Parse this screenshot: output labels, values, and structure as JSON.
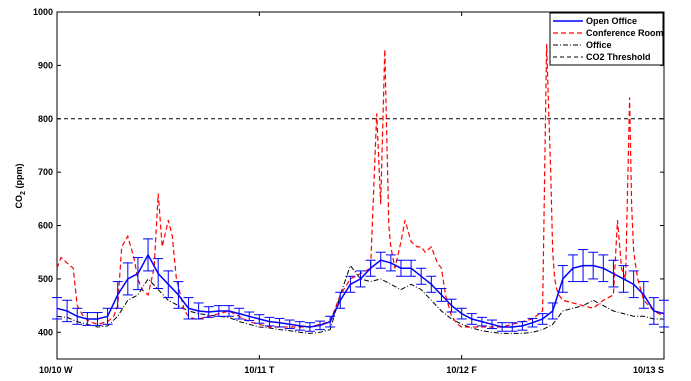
{
  "chart_data": {
    "type": "line",
    "title": "",
    "xlabel": "",
    "ylabel": "CO",
    "ylabel_sub": "2",
    "ylabel_unit": " (ppm)",
    "ylim": [
      350,
      1000
    ],
    "xlim": [
      0,
      3
    ],
    "grid": false,
    "legend_position": "top-right",
    "yticks": [
      400,
      500,
      600,
      700,
      800,
      900,
      1000
    ],
    "xticks": [
      {
        "x": 0,
        "label": "10/10 W"
      },
      {
        "x": 1,
        "label": "10/11 T"
      },
      {
        "x": 2,
        "label": "10/12 F"
      },
      {
        "x": 3,
        "label": "10/13 S"
      }
    ],
    "series": [
      {
        "name": "Open Office",
        "color": "#0000ff",
        "style": "solid",
        "error_bars": true,
        "x": [
          0,
          0.05,
          0.1,
          0.15,
          0.2,
          0.25,
          0.3,
          0.35,
          0.4,
          0.45,
          0.5,
          0.55,
          0.6,
          0.65,
          0.7,
          0.75,
          0.8,
          0.85,
          0.9,
          0.95,
          1.0,
          1.05,
          1.1,
          1.15,
          1.2,
          1.25,
          1.3,
          1.35,
          1.4,
          1.45,
          1.5,
          1.55,
          1.6,
          1.65,
          1.7,
          1.75,
          1.8,
          1.85,
          1.9,
          1.95,
          2.0,
          2.05,
          2.1,
          2.15,
          2.2,
          2.25,
          2.3,
          2.35,
          2.4,
          2.45,
          2.5,
          2.55,
          2.6,
          2.65,
          2.7,
          2.75,
          2.8,
          2.85,
          2.9,
          2.95,
          3.0
        ],
        "values": [
          445,
          440,
          430,
          425,
          425,
          430,
          470,
          500,
          510,
          545,
          510,
          490,
          470,
          445,
          440,
          438,
          440,
          440,
          435,
          430,
          425,
          420,
          418,
          415,
          412,
          410,
          413,
          420,
          460,
          490,
          500,
          520,
          535,
          530,
          520,
          520,
          505,
          490,
          470,
          450,
          435,
          425,
          420,
          415,
          410,
          410,
          412,
          418,
          425,
          440,
          500,
          520,
          525,
          525,
          520,
          510,
          500,
          490,
          470,
          440,
          435
        ],
        "errors": [
          20,
          20,
          15,
          12,
          12,
          15,
          25,
          30,
          30,
          30,
          28,
          25,
          25,
          20,
          15,
          10,
          10,
          10,
          10,
          8,
          8,
          8,
          8,
          8,
          8,
          8,
          8,
          10,
          15,
          15,
          15,
          15,
          15,
          15,
          15,
          15,
          15,
          15,
          12,
          12,
          10,
          10,
          8,
          8,
          8,
          8,
          8,
          8,
          10,
          15,
          25,
          25,
          30,
          25,
          25,
          25,
          25,
          25,
          25,
          25,
          25
        ]
      },
      {
        "name": "Conference Room",
        "color": "#ff0000",
        "style": "dashed",
        "x": [
          0,
          0.02,
          0.05,
          0.08,
          0.1,
          0.13,
          0.16,
          0.2,
          0.25,
          0.28,
          0.3,
          0.32,
          0.35,
          0.38,
          0.4,
          0.42,
          0.45,
          0.48,
          0.5,
          0.52,
          0.55,
          0.57,
          0.59,
          0.61,
          0.63,
          0.65,
          0.68,
          0.7,
          0.75,
          0.8,
          0.85,
          0.9,
          0.95,
          1.0,
          1.05,
          1.1,
          1.15,
          1.2,
          1.25,
          1.3,
          1.35,
          1.4,
          1.45,
          1.5,
          1.55,
          1.58,
          1.6,
          1.62,
          1.64,
          1.65,
          1.67,
          1.7,
          1.72,
          1.75,
          1.78,
          1.8,
          1.82,
          1.85,
          1.88,
          1.9,
          1.92,
          1.95,
          1.98,
          2.0,
          2.05,
          2.1,
          2.15,
          2.2,
          2.25,
          2.3,
          2.35,
          2.4,
          2.42,
          2.44,
          2.45,
          2.46,
          2.47,
          2.48,
          2.5,
          2.55,
          2.6,
          2.65,
          2.7,
          2.75,
          2.77,
          2.79,
          2.81,
          2.83,
          2.84,
          2.85,
          2.87,
          2.9,
          2.95,
          3.0
        ],
        "values": [
          520,
          540,
          530,
          520,
          450,
          430,
          420,
          415,
          420,
          430,
          450,
          560,
          580,
          540,
          500,
          480,
          470,
          520,
          660,
          560,
          610,
          580,
          500,
          470,
          440,
          430,
          425,
          425,
          430,
          435,
          440,
          430,
          420,
          415,
          410,
          410,
          410,
          410,
          410,
          415,
          420,
          470,
          500,
          510,
          520,
          810,
          640,
          930,
          600,
          560,
          520,
          570,
          610,
          570,
          560,
          560,
          550,
          560,
          530,
          520,
          470,
          430,
          415,
          410,
          410,
          410,
          410,
          410,
          415,
          420,
          425,
          440,
          940,
          700,
          550,
          500,
          480,
          470,
          460,
          455,
          450,
          445,
          460,
          470,
          610,
          520,
          500,
          840,
          640,
          550,
          500,
          460,
          440,
          430
        ]
      },
      {
        "name": "Office",
        "color": "#000000",
        "style": "dashdot",
        "x": [
          0,
          0.05,
          0.1,
          0.15,
          0.2,
          0.25,
          0.3,
          0.35,
          0.4,
          0.45,
          0.5,
          0.55,
          0.6,
          0.65,
          0.7,
          0.75,
          0.8,
          0.85,
          0.9,
          0.95,
          1.0,
          1.05,
          1.1,
          1.15,
          1.2,
          1.25,
          1.3,
          1.35,
          1.4,
          1.45,
          1.5,
          1.55,
          1.6,
          1.65,
          1.7,
          1.75,
          1.8,
          1.85,
          1.9,
          1.95,
          2.0,
          2.05,
          2.1,
          2.15,
          2.2,
          2.25,
          2.3,
          2.35,
          2.4,
          2.45,
          2.5,
          2.55,
          2.6,
          2.65,
          2.7,
          2.75,
          2.8,
          2.85,
          2.9,
          2.95,
          3.0
        ],
        "values": [
          430,
          428,
          420,
          415,
          410,
          412,
          430,
          460,
          470,
          500,
          480,
          460,
          450,
          440,
          435,
          432,
          430,
          428,
          420,
          415,
          410,
          408,
          405,
          403,
          400,
          398,
          400,
          405,
          470,
          525,
          500,
          495,
          500,
          490,
          480,
          490,
          480,
          460,
          440,
          425,
          415,
          408,
          403,
          400,
          398,
          398,
          398,
          400,
          405,
          415,
          440,
          445,
          450,
          460,
          450,
          440,
          435,
          430,
          430,
          425,
          425
        ]
      },
      {
        "name": "CO2 Threshold",
        "color": "#000000",
        "style": "dashed",
        "x": [
          0,
          3
        ],
        "values": [
          800,
          800
        ]
      }
    ]
  }
}
